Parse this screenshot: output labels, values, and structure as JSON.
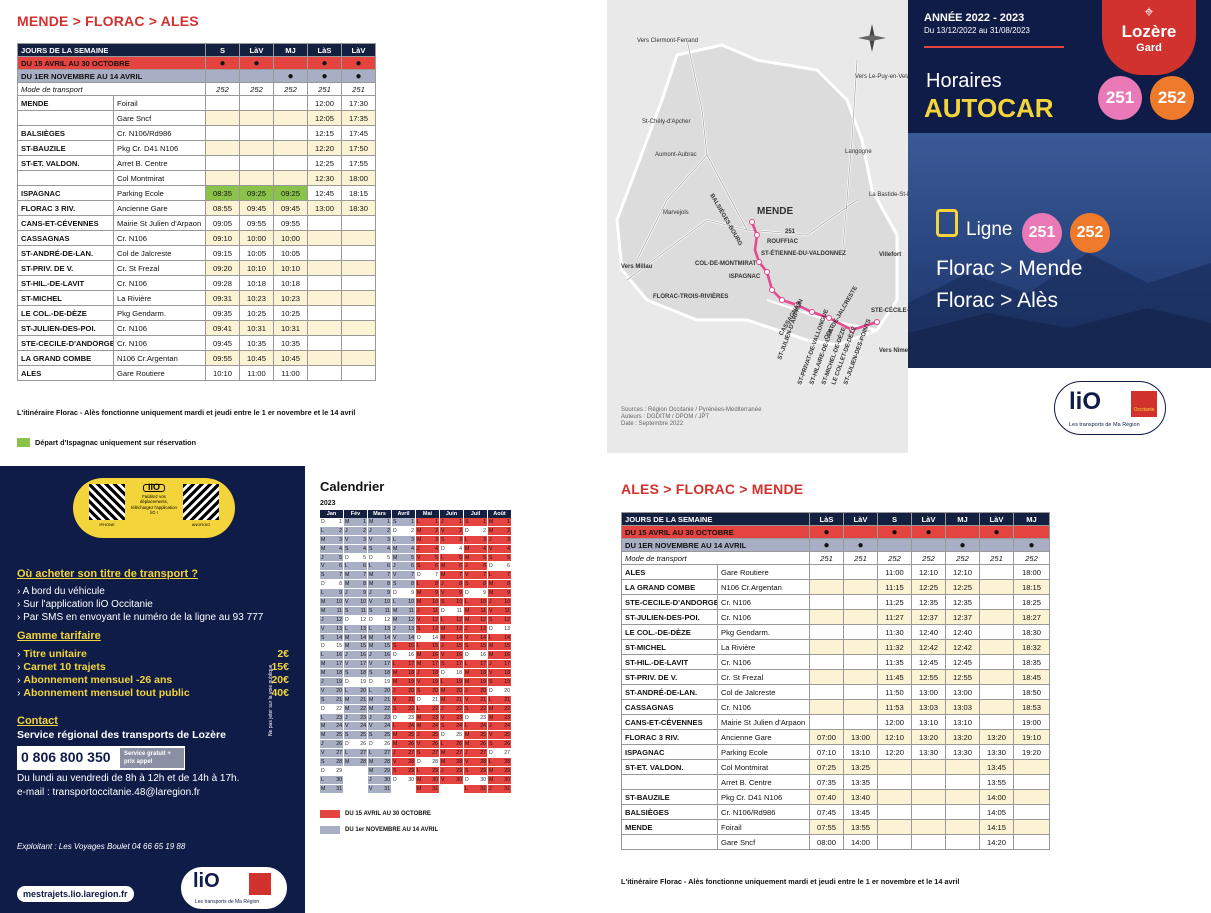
{
  "mende_florac_ales": {
    "title": "MENDE > FLORAC > ALES",
    "header": [
      "JOURS DE LA SEMAINE",
      "S",
      "LàV",
      "MJ",
      "LàS",
      "LàV"
    ],
    "period1": {
      "label": "DU 15 AVRIL AU 30 OCTOBRE",
      "dots": [
        "●",
        "●",
        "",
        "●",
        "●"
      ]
    },
    "period2": {
      "label": "DU 1ER NOVEMBRE AU 14 AVRIL",
      "dots": [
        "",
        "",
        "●",
        "●",
        "●"
      ]
    },
    "mode": {
      "label": "Mode de transport",
      "values": [
        "252",
        "252",
        "252",
        "251",
        "251"
      ]
    },
    "rows": [
      {
        "stop": "MENDE",
        "place": "Foirail",
        "times": [
          "",
          "",
          "",
          "12:00",
          "17:30"
        ]
      },
      {
        "stop": "",
        "place": "Gare Sncf",
        "times": [
          "",
          "",
          "",
          "12:05",
          "17:35"
        ]
      },
      {
        "stop": "BALSIÈGES",
        "place": "Cr. N106/Rd986",
        "times": [
          "",
          "",
          "",
          "12:15",
          "17:45"
        ]
      },
      {
        "stop": "ST-BAUZILE",
        "place": "Pkg Cr. D41 N106",
        "times": [
          "",
          "",
          "",
          "12:20",
          "17:50"
        ]
      },
      {
        "stop": "ST-ET. VALDON.",
        "place": "Arret B. Centre",
        "times": [
          "",
          "",
          "",
          "12:25",
          "17:55"
        ]
      },
      {
        "stop": "",
        "place": "Col Montmirat",
        "times": [
          "",
          "",
          "",
          "12:30",
          "18:00"
        ]
      },
      {
        "stop": "ISPAGNAC",
        "place": "Parking Ecole",
        "times": [
          "08:35",
          "09:25",
          "09:25",
          "12:45",
          "18:15"
        ]
      },
      {
        "stop": "FLORAC 3 RIV.",
        "place": "Ancienne Gare",
        "times": [
          "08:55",
          "09:45",
          "09:45",
          "13:00",
          "18:30"
        ]
      },
      {
        "stop": "CANS-ET-CÉVENNES",
        "place": "Mairie St Julien d'Arpaon",
        "times": [
          "09:05",
          "09:55",
          "09:55",
          "",
          ""
        ]
      },
      {
        "stop": "CASSAGNAS",
        "place": "Cr. N106",
        "times": [
          "09:10",
          "10:00",
          "10:00",
          "",
          ""
        ]
      },
      {
        "stop": "ST-ANDRÉ-DE-LAN.",
        "place": "Col de Jalcreste",
        "times": [
          "09:15",
          "10:05",
          "10:05",
          "",
          ""
        ]
      },
      {
        "stop": "ST-PRIV. DE V.",
        "place": "Cr. St Frezal",
        "times": [
          "09:20",
          "10:10",
          "10:10",
          "",
          ""
        ]
      },
      {
        "stop": "ST-HIL.-DE-LAVIT",
        "place": "Cr. N106",
        "times": [
          "09:28",
          "10:18",
          "10:18",
          "",
          ""
        ]
      },
      {
        "stop": "ST-MICHEL",
        "place": "La Rivière",
        "times": [
          "09:31",
          "10:23",
          "10:23",
          "",
          ""
        ]
      },
      {
        "stop": "LE COL.-DE-DÈZE",
        "place": "Pkg Gendarm.",
        "times": [
          "09:35",
          "10:25",
          "10:25",
          "",
          ""
        ]
      },
      {
        "stop": "ST-JULIEN-DES-POI.",
        "place": "Cr. N106",
        "times": [
          "09:41",
          "10:31",
          "10:31",
          "",
          ""
        ]
      },
      {
        "stop": "STE-CECILE-D'ANDORGE",
        "place": "Cr. N106",
        "times": [
          "09:45",
          "10:35",
          "10:35",
          "",
          ""
        ]
      },
      {
        "stop": "LA GRAND COMBE",
        "place": "N106 Cr.Argentan",
        "times": [
          "09:55",
          "10:45",
          "10:45",
          "",
          ""
        ]
      },
      {
        "stop": "ALES",
        "place": "Gare Routiere",
        "times": [
          "10:10",
          "11:00",
          "11:00",
          "",
          ""
        ]
      }
    ],
    "note": "L'itinéraire Florac - Alès fonctionne uniquement mardi et jeudi entre le 1 er novembre et le 14 avril",
    "legend": "Départ d'Ispagnac uniquement sur réservation"
  },
  "map": {
    "places": [
      "Vers Clermont-Ferrand",
      "Vers Le-Puy-en-Velay",
      "St-Chély-d'Apcher",
      "Aumont-Aubrac",
      "Langogne",
      "La Bastide-St-Laurent",
      "Marvejols",
      "BALSIÈGES-BOURG",
      "MENDE",
      "251",
      "ROUFFIAC",
      "ST-ÉTIENNE-DU-VALDONNEZ",
      "COL-DE-MONTMIRAT",
      "ISPAGNAC",
      "FLORAC-TROIS-RIVIÈRES",
      "Villefort",
      "Vers Millau",
      "CASSAGNAS",
      "COL-DE-JALCRESTE",
      "STE-CÉCILE-D'ANDORGE",
      "ST-JULIEN-D'ARPAON",
      "ST-PRIVAT-DE-VALLONGUE",
      "ST-HILAIRE-DE-LAVIT",
      "ST-MICHEL-DE-DÈZE",
      "LE COLLET-DE-DÈZE",
      "ST-JULIEN-DES-POINTS",
      "Vers Nîmes"
    ],
    "sources": [
      "Sources : Région Occitanie / Pyrénées-Méditerranée",
      "Auteurs : DGDITM / DPOM / JPT",
      "Date : Septembre 2022"
    ]
  },
  "cover": {
    "year": "ANNÉE 2022 - 2023",
    "dates": "Du 13/12/2022 au 31/08/2023",
    "dept1": "Lozère",
    "dept2": "Gard",
    "h1": "Horaires",
    "h2": "AUTOCAR",
    "line_label": "Ligne",
    "line1": "251",
    "line2": "252",
    "dest1": "Florac > Mende",
    "dest2": "Florac > Alès",
    "logo": "liO",
    "logo_sub": "Les transports de Ma Région",
    "region": "Occitanie"
  },
  "info": {
    "qr_text": "Facilitez vos déplacements, téléchargez l'application liO !",
    "qr_left": "IPHONE",
    "qr_right": "ANDROID",
    "buy_title": "Où acheter son titre de transport ?",
    "buy_items": [
      "A bord du véhicule",
      "Sur l'application liO Occitanie",
      "Par SMS en envoyant le numéro de la ligne au 93 777"
    ],
    "tariff_title": "Gamme tarifaire",
    "tariffs": [
      {
        "label": "Titre unitaire",
        "price": "2€"
      },
      {
        "label": "Carnet 10 trajets",
        "price": "15€"
      },
      {
        "label": "Abonnement mensuel -26 ans",
        "price": "20€"
      },
      {
        "label": "Abonnement mensuel tout public",
        "price": "40€"
      }
    ],
    "contact_title": "Contact",
    "contact_sub": "Service régional des transports de Lozère",
    "phone": "0 806 800 350",
    "phone_note": "Service gratuit + prix appel",
    "hours": "Du lundi au vendredi de 8h à 12h et de 14h à 17h.",
    "email": "e-mail : transportoccitanie.48@laregion.fr",
    "side_note": "Ne pas jeter sur la voie publique",
    "operator": "Exploitant : Les Voyages Boulet 04 66 65 19 88",
    "site": "mestrajets.lio.laregion.fr"
  },
  "calendar": {
    "title": "Calendrier",
    "year": "2023",
    "months": [
      "Jan",
      "Fév",
      "Mars",
      "Avril",
      "Mai",
      "Juin",
      "Juil",
      "Août"
    ],
    "legend1": "DU 15 AVRIL AU 30 OCTOBRE",
    "legend2": "DU 1er NOVEMBRE AU 14 AVRIL",
    "colors": {
      "summer": "#e5433f",
      "winter": "#a8aec3"
    }
  },
  "ales_florac_mende": {
    "title": "ALES > FLORAC > MENDE",
    "header": [
      "JOURS DE LA SEMAINE",
      "LàS",
      "LàV",
      "S",
      "LàV",
      "MJ",
      "LàV",
      "MJ"
    ],
    "period1": {
      "label": "DU 15 AVRIL AU 30 OCTOBRE",
      "dots": [
        "●",
        "",
        "●",
        "●",
        "",
        "●",
        ""
      ]
    },
    "period2": {
      "label": "DU 1ER NOVEMBRE AU 14 AVRIL",
      "dots": [
        "●",
        "●",
        "",
        "",
        "●",
        "",
        "●"
      ]
    },
    "mode": {
      "label": "Mode de transport",
      "values": [
        "251",
        "251",
        "252",
        "252",
        "252",
        "251",
        "252"
      ]
    },
    "rows": [
      {
        "stop": "ALES",
        "place": "Gare Routiere",
        "times": [
          "",
          "",
          "11:00",
          "12:10",
          "12:10",
          "",
          "18:00"
        ]
      },
      {
        "stop": "LA GRAND COMBE",
        "place": "N106 Cr.Argentan",
        "times": [
          "",
          "",
          "11:15",
          "12:25",
          "12:25",
          "",
          "18:15"
        ]
      },
      {
        "stop": "STE-CECILE-D'ANDORGE",
        "place": "Cr. N106",
        "times": [
          "",
          "",
          "11:25",
          "12:35",
          "12:35",
          "",
          "18:25"
        ]
      },
      {
        "stop": "ST-JULIEN-DES-POI.",
        "place": "Cr. N106",
        "times": [
          "",
          "",
          "11:27",
          "12:37",
          "12:37",
          "",
          "18:27"
        ]
      },
      {
        "stop": "LE COL.-DE-DÈZE",
        "place": "Pkg Gendarm.",
        "times": [
          "",
          "",
          "11:30",
          "12:40",
          "12:40",
          "",
          "18:30"
        ]
      },
      {
        "stop": "ST-MICHEL",
        "place": "La Rivière",
        "times": [
          "",
          "",
          "11:32",
          "12:42",
          "12:42",
          "",
          "18:32"
        ]
      },
      {
        "stop": "ST-HIL.-DE-LAVIT",
        "place": "Cr. N106",
        "times": [
          "",
          "",
          "11:35",
          "12:45",
          "12:45",
          "",
          "18:35"
        ]
      },
      {
        "stop": "ST-PRIV. DE V.",
        "place": "Cr. St Frezal",
        "times": [
          "",
          "",
          "11:45",
          "12:55",
          "12:55",
          "",
          "18:45"
        ]
      },
      {
        "stop": "ST-ANDRÉ-DE-LAN.",
        "place": "Col de Jalcreste",
        "times": [
          "",
          "",
          "11:50",
          "13:00",
          "13:00",
          "",
          "18:50"
        ]
      },
      {
        "stop": "CASSAGNAS",
        "place": "Cr. N106",
        "times": [
          "",
          "",
          "11:53",
          "13:03",
          "13:03",
          "",
          "18:53"
        ]
      },
      {
        "stop": "CANS-ET-CÉVENNES",
        "place": "Mairie St Julien d'Arpaon",
        "times": [
          "",
          "",
          "12:00",
          "13:10",
          "13:10",
          "",
          "19:00"
        ]
      },
      {
        "stop": "FLORAC 3 RIV.",
        "place": "Ancienne Gare",
        "times": [
          "07:00",
          "13:00",
          "12:10",
          "13:20",
          "13:20",
          "13:20",
          "19:10"
        ]
      },
      {
        "stop": "ISPAGNAC",
        "place": "Parking Ecole",
        "times": [
          "07:10",
          "13:10",
          "12:20",
          "13:30",
          "13:30",
          "13:30",
          "19:20"
        ]
      },
      {
        "stop": "ST-ET. VALDON.",
        "place": "Col Montmirat",
        "times": [
          "07:25",
          "13:25",
          "",
          "",
          "",
          "13:45",
          ""
        ]
      },
      {
        "stop": "",
        "place": "Arret B. Centre",
        "times": [
          "07:35",
          "13:35",
          "",
          "",
          "",
          "13:55",
          ""
        ]
      },
      {
        "stop": "ST-BAUZILE",
        "place": "Pkg Cr. D41 N106",
        "times": [
          "07:40",
          "13:40",
          "",
          "",
          "",
          "14:00",
          ""
        ]
      },
      {
        "stop": "BALSIÈGES",
        "place": "Cr. N106/Rd986",
        "times": [
          "07:45",
          "13:45",
          "",
          "",
          "",
          "14:05",
          ""
        ]
      },
      {
        "stop": "MENDE",
        "place": "Foirail",
        "times": [
          "07:55",
          "13:55",
          "",
          "",
          "",
          "14:15",
          ""
        ]
      },
      {
        "stop": "",
        "place": "Gare Sncf",
        "times": [
          "08:00",
          "14:00",
          "",
          "",
          "",
          "14:20",
          ""
        ]
      }
    ],
    "note": "L'itinéraire Florac - Alès fonctionne uniquement mardi et jeudi entre le 1 er novembre et le 14 avril"
  }
}
